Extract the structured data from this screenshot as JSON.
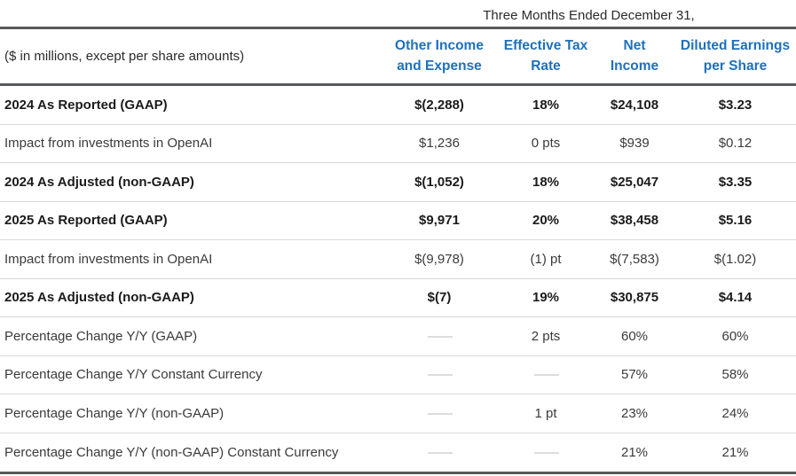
{
  "title": "Three Months Ended December 31,",
  "table": {
    "row_header": "($ in millions, except per share amounts)",
    "columns": [
      {
        "line1": "Other Income",
        "line2": "and Expense"
      },
      {
        "line1": "Effective Tax",
        "line2": "Rate"
      },
      {
        "line1": "Net",
        "line2": "Income"
      },
      {
        "line1": "Diluted Earnings",
        "line2": "per Share"
      }
    ],
    "rows": [
      {
        "label": "2024 As Reported (GAAP)",
        "bold": true,
        "values": [
          "$(2,288)",
          "18%",
          "$24,108",
          "$3.23"
        ]
      },
      {
        "label": "Impact from investments in OpenAI",
        "bold": false,
        "values": [
          "$1,236",
          "0 pts",
          "$939",
          "$0.12"
        ]
      },
      {
        "label": "2024 As Adjusted (non-GAAP)",
        "bold": true,
        "values": [
          "$(1,052)",
          "18%",
          "$25,047",
          "$3.35"
        ]
      },
      {
        "label": "2025 As Reported (GAAP)",
        "bold": true,
        "values": [
          "$9,971",
          "20%",
          "$38,458",
          "$5.16"
        ]
      },
      {
        "label": "Impact from investments in OpenAI",
        "bold": false,
        "values": [
          "$(9,978)",
          "(1) pt",
          "$(7,583)",
          "$(1.02)"
        ]
      },
      {
        "label": "2025 As Adjusted (non-GAAP)",
        "bold": true,
        "values": [
          "$(7)",
          "19%",
          "$30,875",
          "$4.14"
        ]
      },
      {
        "label": "Percentage Change Y/Y (GAAP)",
        "bold": false,
        "values": [
          "——",
          "2 pts",
          "60%",
          "60%"
        ]
      },
      {
        "label": "Percentage Change Y/Y Constant Currency",
        "bold": false,
        "values": [
          "——",
          "——",
          "57%",
          "58%"
        ]
      },
      {
        "label": "Percentage Change Y/Y (non-GAAP)",
        "bold": false,
        "values": [
          "——",
          "1 pt",
          "23%",
          "24%"
        ]
      },
      {
        "label": "Percentage Change Y/Y (non-GAAP) Constant Currency",
        "bold": false,
        "values": [
          "——",
          "——",
          "21%",
          "21%"
        ]
      }
    ]
  },
  "colors": {
    "header_blue": "#1e70bc",
    "rule_dark": "#58595b",
    "separator_gray": "#d9d9d9"
  }
}
